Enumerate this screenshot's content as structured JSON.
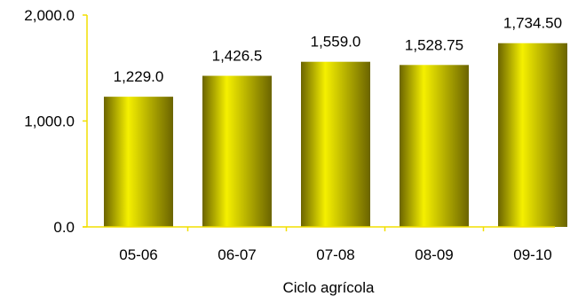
{
  "chart_data": {
    "type": "bar",
    "title": "",
    "xlabel": "Ciclo agrícola",
    "ylabel": "",
    "categories": [
      "05-06",
      "06-07",
      "07-08",
      "08-09",
      "09-10"
    ],
    "values": [
      1229.0,
      1426.5,
      1559.0,
      1528.75,
      1734.5
    ],
    "value_labels": [
      "1,229.0",
      "1,426.5",
      "1,559.0",
      "1,528.75",
      "1,734.50"
    ],
    "ylim": [
      0,
      2000
    ],
    "yticks": [
      0,
      1000,
      2000
    ],
    "ytick_labels": [
      "0.0",
      "1,000.0",
      "2,000.0"
    ],
    "grid": false,
    "legend": "none",
    "bar_color": "#f5f000",
    "bar_shadow_color": "#6b6400",
    "axis_color": "#f2df00"
  }
}
